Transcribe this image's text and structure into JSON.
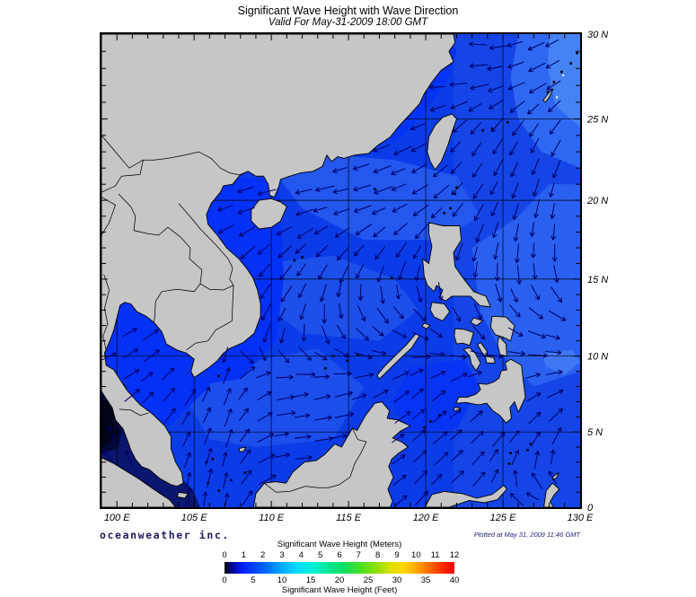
{
  "header": {
    "title": "Significant Wave Height with Wave Direction",
    "subtitle": "Valid For May-31-2009 18:00 GMT"
  },
  "map": {
    "lon_labels": [
      "100 E",
      "105 E",
      "110 E",
      "115 E",
      "120 E",
      "125 E",
      "130 E"
    ],
    "lat_labels": [
      "30 N",
      "25 N",
      "20 N",
      "15 N",
      "10 N",
      "5 N",
      "0"
    ]
  },
  "footer": {
    "brand": "oceanweather inc.",
    "plotted": "Plotted at May 31, 2009 11:46 GMT"
  },
  "colorbar": {
    "title_meters": "Significant Wave Height (Meters)",
    "meters_ticks": [
      "0",
      "1",
      "2",
      "3",
      "4",
      "5",
      "6",
      "7",
      "8",
      "9",
      "10",
      "11",
      "12"
    ],
    "title_feet": "Significant Wave Height (Feet)",
    "feet_ticks": [
      "0",
      "5",
      "10",
      "15",
      "20",
      "25",
      "30",
      "35",
      "40"
    ],
    "gradient_stops": [
      [
        "#000000",
        0
      ],
      [
        "#000090",
        3
      ],
      [
        "#0020FF",
        8
      ],
      [
        "#0060FF",
        17
      ],
      [
        "#00AAFF",
        25
      ],
      [
        "#00D8FF",
        31
      ],
      [
        "#00F0D8",
        38
      ],
      [
        "#00E8A0",
        44
      ],
      [
        "#10E060",
        52
      ],
      [
        "#50E020",
        60
      ],
      [
        "#98E000",
        67
      ],
      [
        "#D8E000",
        72
      ],
      [
        "#FFD800",
        78
      ],
      [
        "#FFA000",
        84
      ],
      [
        "#FF6000",
        90
      ],
      [
        "#FF2000",
        96
      ],
      [
        "#F00000",
        100
      ]
    ]
  },
  "colors": {
    "ocean": "#0B3CE8",
    "land": "#C6C6C6",
    "arrow": "#000066",
    "frame": "#000000",
    "navy_text": "#23237E",
    "text": "#000000"
  }
}
